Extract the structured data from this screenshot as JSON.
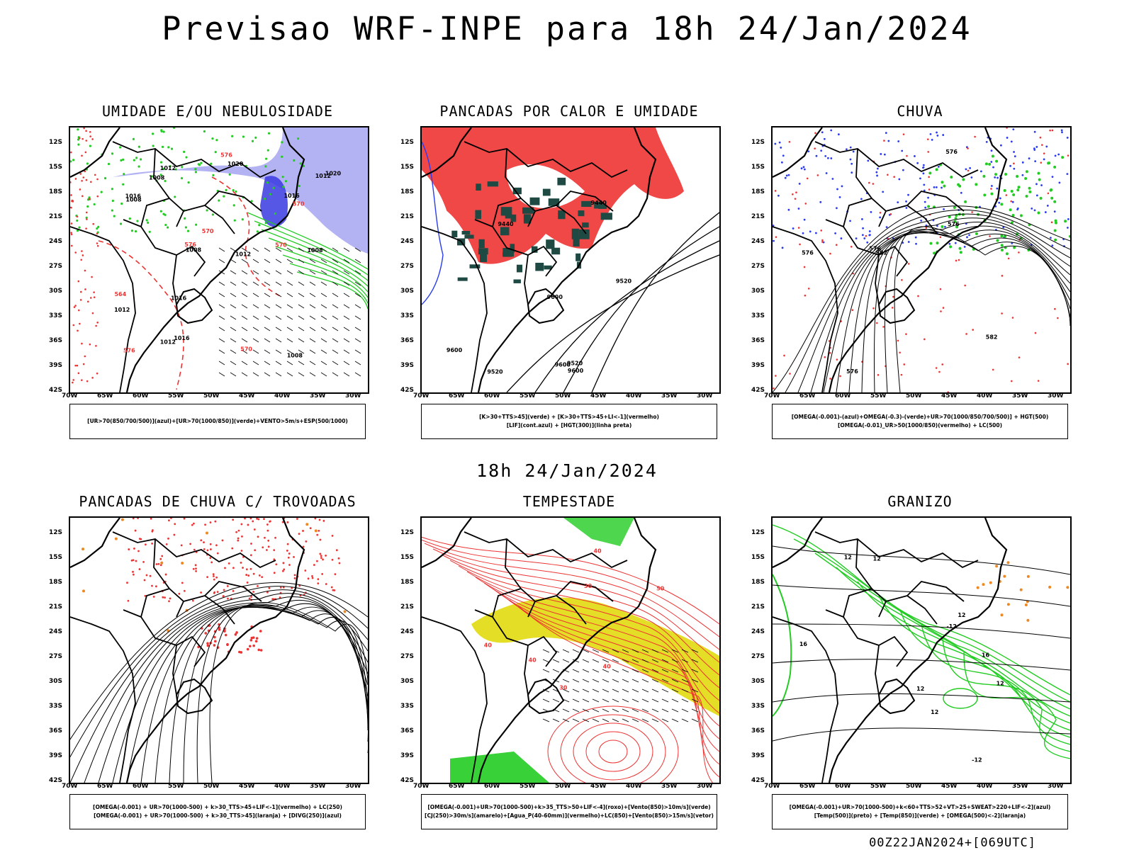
{
  "title": "Previsao WRF-INPE  para 18h 24/Jan/2024",
  "mid_time": "18h 24/Jan/2024",
  "footer": "00Z22JAN2024+[069UTC]",
  "lat_labels": [
    "12S",
    "15S",
    "18S",
    "21S",
    "24S",
    "27S",
    "30S",
    "33S",
    "36S",
    "39S",
    "42S"
  ],
  "lon_labels": [
    "70W",
    "65W",
    "60W",
    "55W",
    "50W",
    "45W",
    "40W",
    "35W",
    "30W"
  ],
  "colors": {
    "humid_blue": "#9a9af0",
    "deep_blue": "#3a3ae0",
    "green": "#22cc22",
    "red": "#ee3333",
    "dark_teal": "#1f4a44",
    "yellow": "#e0d800",
    "orange": "#ee8822",
    "black": "#000000"
  },
  "panels": [
    {
      "title": "UMIDADE E/OU NEBULOSIDADE",
      "legend": [
        "[UR>70(850/700/500)](azul)+[UR>70(1000/850)](verde)+VENTO>5m/s+ESP(500/1000)"
      ],
      "labels": [
        "1008",
        "1008",
        "1008",
        "1008",
        "1012",
        "1008",
        "1012",
        "1012",
        "1016",
        "1012",
        "1016",
        "1012",
        "1016",
        "1020",
        "1016",
        "1020",
        "576",
        "570",
        "576",
        "570",
        "564",
        "576",
        "570",
        "570"
      ]
    },
    {
      "title": "PANCADAS POR CALOR E UMIDADE",
      "legend": [
        "[K>30+TTS>45](verde) + [K>30+TTS>45+LI<-1](vermelho)",
        "[LIF](cont.azul) + [HGT(300)](linha preta)"
      ],
      "labels": [
        "9600",
        "9600",
        "9600",
        "9520",
        "9520",
        "9440",
        "9440",
        "9520",
        "9600"
      ]
    },
    {
      "title": "CHUVA",
      "legend": [
        "[OMEGA(-0.001)-(azul)+OMEGA(-0.3)-(verde)+UR>70(1000/850/700/500)] + HGT(500)",
        "[OMEGA(-0.01)_UR>50(1000/850)(vermelho) + LC(500)"
      ],
      "labels": [
        "582",
        "576",
        "576",
        "576",
        "582",
        "576",
        "576"
      ]
    },
    {
      "title": "PANCADAS DE CHUVA C/ TROVOADAS",
      "legend": [
        "[OMEGA(-0.001) + UR>70(1000-500) + k>30_TTS>45+LIF<-1](vermelho) + LC(250)",
        "[OMEGA(-0.001) + UR>70(1000-500) + k>30_TTS>45](laranja) + [DIVG(250)](azul)"
      ],
      "labels": []
    },
    {
      "title": "TEMPESTADE",
      "legend": [
        "[OMEGA(-0.001)+UR>70(1000-500)+k>35_TTS>50+LIF<-4](roxo)+[Vento(850)>10m/s](verde)",
        "[CJ(250)>30m/s](amarelo)+[Agua_P(40-60mm)](vermelho)+LC(850)+[Vento(850)>15m/s](vetor)"
      ],
      "labels": [
        "40",
        "40",
        "50",
        "40",
        "30",
        "30",
        "40"
      ]
    },
    {
      "title": "GRANIZO",
      "legend": [
        "[OMEGA(-0.001)+UR>70(1000-500)+k<60+TTS>52+VT>25+SWEAT>220+LIF<-2](azul)",
        "[Temp(500)](preto) + [Temp(850)](verde) + [OMEGA(500)<-2](laranja)"
      ],
      "labels": [
        "-12",
        "-12",
        "12",
        "12",
        "12",
        "12",
        "12",
        "16",
        "12",
        "16"
      ]
    }
  ]
}
